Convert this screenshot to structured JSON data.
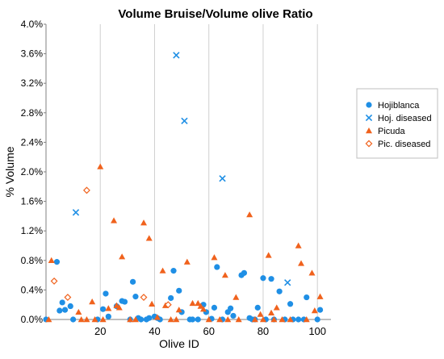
{
  "chart_data": {
    "type": "scatter",
    "title": "Volume Bruise/Volume olive Ratio",
    "xlabel": "Olive ID",
    "ylabel": "% Volume",
    "xlim": [
      0,
      105
    ],
    "ylim": [
      0,
      4.0
    ],
    "x_ticks": [
      20,
      40,
      60,
      80,
      100
    ],
    "x_tick_labels": [
      "20",
      "40",
      "60",
      "80",
      "100"
    ],
    "y_ticks": [
      0,
      0.4,
      0.8,
      1.2,
      1.6,
      2.0,
      2.4,
      2.8,
      3.2,
      3.6,
      4.0
    ],
    "y_tick_labels": [
      "0.0%",
      "0.4%",
      "0.8%",
      "1.2%",
      "1.6%",
      "2.0%",
      "2.4%",
      "2.8%",
      "3.2%",
      "3.6%",
      "4.0%"
    ],
    "grid": "vertical",
    "legend_position": "right",
    "series": [
      {
        "name": "Hojiblanca",
        "marker": "circle",
        "color": "#1f8fe5",
        "points": [
          [
            0,
            0.0
          ],
          [
            4,
            0.78
          ],
          [
            5,
            0.12
          ],
          [
            6,
            0.23
          ],
          [
            7,
            0.13
          ],
          [
            9,
            0.18
          ],
          [
            10,
            0.0
          ],
          [
            19,
            0.0
          ],
          [
            21,
            0.14
          ],
          [
            22,
            0.35
          ],
          [
            23,
            0.04
          ],
          [
            26,
            0.18
          ],
          [
            28,
            0.25
          ],
          [
            29,
            0.24
          ],
          [
            31,
            0.0
          ],
          [
            32,
            0.51
          ],
          [
            33,
            0.31
          ],
          [
            34,
            0.02
          ],
          [
            35,
            0.0
          ],
          [
            37,
            0.0
          ],
          [
            38,
            0.02
          ],
          [
            40,
            0.04
          ],
          [
            41,
            0.02
          ],
          [
            42,
            0.0
          ],
          [
            46,
            0.29
          ],
          [
            47,
            0.66
          ],
          [
            49,
            0.39
          ],
          [
            50,
            0.1
          ],
          [
            53,
            0.0
          ],
          [
            54,
            0.0
          ],
          [
            56,
            0.0
          ],
          [
            58,
            0.2
          ],
          [
            59,
            0.1
          ],
          [
            61,
            0.01
          ],
          [
            62,
            0.16
          ],
          [
            63,
            0.71
          ],
          [
            65,
            0.0
          ],
          [
            67,
            0.1
          ],
          [
            68,
            0.15
          ],
          [
            69,
            0.05
          ],
          [
            72,
            0.6
          ],
          [
            73,
            0.63
          ],
          [
            75,
            0.02
          ],
          [
            76,
            0.0
          ],
          [
            77,
            0.0
          ],
          [
            78,
            0.16
          ],
          [
            80,
            0.56
          ],
          [
            81,
            0.0
          ],
          [
            83,
            0.55
          ],
          [
            84,
            0.0
          ],
          [
            86,
            0.38
          ],
          [
            88,
            0.0
          ],
          [
            90,
            0.21
          ],
          [
            91,
            0.0
          ],
          [
            93,
            0.0
          ],
          [
            95,
            0.0
          ],
          [
            96,
            0.3
          ],
          [
            100,
            0.0
          ],
          [
            101,
            0.13
          ]
        ]
      },
      {
        "name": "Hoj. diseased",
        "marker": "x",
        "color": "#1f8fe5",
        "points": [
          [
            11,
            1.45
          ],
          [
            48,
            3.58
          ],
          [
            51,
            2.69
          ],
          [
            65,
            1.91
          ],
          [
            89,
            0.5
          ]
        ]
      },
      {
        "name": "Picuda",
        "marker": "triangle",
        "color": "#f0621d",
        "points": [
          [
            1,
            0.0
          ],
          [
            2,
            0.8
          ],
          [
            12,
            0.1
          ],
          [
            13,
            0.0
          ],
          [
            15,
            0.0
          ],
          [
            17,
            0.24
          ],
          [
            18,
            0.0
          ],
          [
            20,
            2.07
          ],
          [
            21,
            0.0
          ],
          [
            23,
            0.15
          ],
          [
            25,
            1.34
          ],
          [
            26,
            0.19
          ],
          [
            27,
            0.16
          ],
          [
            28,
            0.85
          ],
          [
            31,
            0.0
          ],
          [
            33,
            0.0
          ],
          [
            36,
            1.31
          ],
          [
            38,
            1.1
          ],
          [
            39,
            0.21
          ],
          [
            41,
            0.03
          ],
          [
            43,
            0.66
          ],
          [
            44,
            0.19
          ],
          [
            46,
            0.0
          ],
          [
            48,
            0.0
          ],
          [
            49,
            0.13
          ],
          [
            52,
            0.78
          ],
          [
            54,
            0.22
          ],
          [
            56,
            0.22
          ],
          [
            57,
            0.18
          ],
          [
            58,
            0.14
          ],
          [
            60,
            0.0
          ],
          [
            62,
            0.84
          ],
          [
            64,
            0.0
          ],
          [
            66,
            0.6
          ],
          [
            67,
            0.0
          ],
          [
            70,
            0.3
          ],
          [
            71,
            0.0
          ],
          [
            75,
            1.42
          ],
          [
            77,
            0.0
          ],
          [
            79,
            0.07
          ],
          [
            80,
            0.0
          ],
          [
            82,
            0.87
          ],
          [
            83,
            0.09
          ],
          [
            84,
            0.0
          ],
          [
            85,
            0.16
          ],
          [
            87,
            0.0
          ],
          [
            90,
            0.0
          ],
          [
            93,
            1.0
          ],
          [
            94,
            0.76
          ],
          [
            96,
            0.0
          ],
          [
            98,
            0.63
          ],
          [
            99,
            0.12
          ],
          [
            101,
            0.31
          ]
        ]
      },
      {
        "name": "Pic. diseased",
        "marker": "diamond",
        "color": "#f0621d",
        "points": [
          [
            3,
            0.52
          ],
          [
            8,
            0.3
          ],
          [
            15,
            1.75
          ],
          [
            36,
            0.3
          ],
          [
            45,
            0.2
          ]
        ]
      }
    ]
  }
}
